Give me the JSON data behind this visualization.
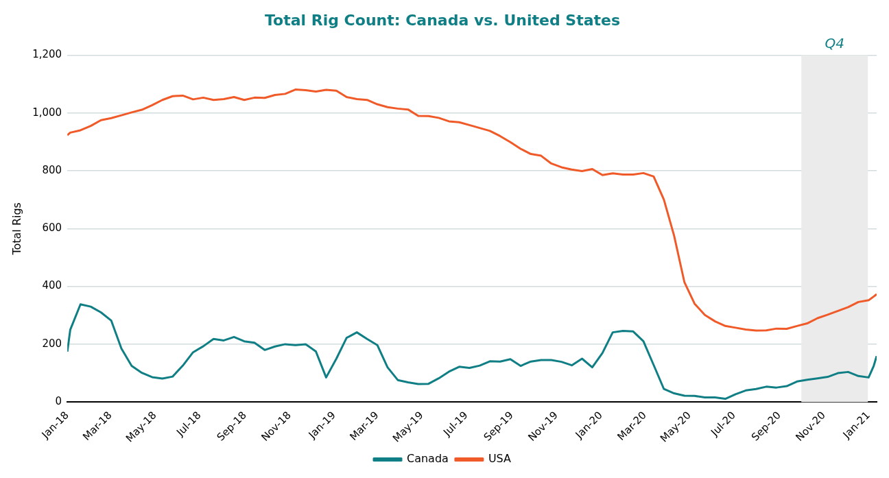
{
  "chart_data": {
    "type": "line",
    "title": "Total Rig Count: Canada vs. United States",
    "ylabel": "Total Rigs",
    "x": [
      "2018-01-01",
      "2018-01-05",
      "2018-01-19",
      "2018-02-02",
      "2018-02-16",
      "2018-03-02",
      "2018-03-16",
      "2018-03-30",
      "2018-04-13",
      "2018-04-27",
      "2018-05-11",
      "2018-05-25",
      "2018-06-08",
      "2018-06-22",
      "2018-07-06",
      "2018-07-20",
      "2018-08-03",
      "2018-08-17",
      "2018-08-31",
      "2018-09-14",
      "2018-09-28",
      "2018-10-12",
      "2018-10-26",
      "2018-11-09",
      "2018-11-23",
      "2018-12-07",
      "2018-12-21",
      "2019-01-04",
      "2019-01-18",
      "2019-02-01",
      "2019-02-15",
      "2019-03-01",
      "2019-03-15",
      "2019-03-29",
      "2019-04-12",
      "2019-04-26",
      "2019-05-10",
      "2019-05-24",
      "2019-06-07",
      "2019-06-21",
      "2019-07-05",
      "2019-07-19",
      "2019-08-02",
      "2019-08-16",
      "2019-08-30",
      "2019-09-13",
      "2019-09-27",
      "2019-10-11",
      "2019-10-25",
      "2019-11-08",
      "2019-11-22",
      "2019-12-06",
      "2019-12-20",
      "2020-01-03",
      "2020-01-17",
      "2020-01-31",
      "2020-02-14",
      "2020-02-28",
      "2020-03-13",
      "2020-03-27",
      "2020-04-10",
      "2020-04-24",
      "2020-05-08",
      "2020-05-22",
      "2020-06-05",
      "2020-06-19",
      "2020-07-03",
      "2020-07-17",
      "2020-07-31",
      "2020-08-14",
      "2020-08-28",
      "2020-09-11",
      "2020-09-25",
      "2020-10-09",
      "2020-10-23",
      "2020-11-06",
      "2020-11-20",
      "2020-12-04",
      "2020-12-18",
      "2021-01-01",
      "2021-01-08",
      "2021-01-12"
    ],
    "series": [
      {
        "name": "Canada",
        "color": "#107f85",
        "values": [
          174,
          250,
          338,
          330,
          310,
          282,
          185,
          125,
          101,
          86,
          81,
          88,
          126,
          172,
          193,
          218,
          213,
          225,
          210,
          205,
          180,
          192,
          200,
          197,
          200,
          175,
          85,
          150,
          222,
          241,
          218,
          197,
          120,
          76,
          68,
          62,
          63,
          82,
          105,
          122,
          118,
          126,
          141,
          140,
          148,
          125,
          140,
          145,
          145,
          139,
          127,
          150,
          120,
          170,
          241,
          246,
          244,
          210,
          128,
          45,
          30,
          22,
          21,
          16,
          16,
          11,
          27,
          40,
          45,
          53,
          50,
          55,
          71,
          77,
          82,
          87,
          100,
          104,
          90,
          85,
          125,
          159
        ]
      },
      {
        "name": "USA",
        "color": "#f05a28",
        "values": [
          923,
          932,
          940,
          955,
          975,
          982,
          992,
          1002,
          1011,
          1027,
          1045,
          1058,
          1060,
          1047,
          1053,
          1045,
          1048,
          1055,
          1045,
          1053,
          1052,
          1062,
          1066,
          1081,
          1079,
          1074,
          1080,
          1077,
          1055,
          1048,
          1045,
          1030,
          1020,
          1015,
          1012,
          990,
          989,
          983,
          971,
          968,
          958,
          948,
          938,
          920,
          899,
          876,
          858,
          852,
          825,
          812,
          804,
          799,
          806,
          785,
          791,
          787,
          787,
          792,
          780,
          700,
          575,
          415,
          340,
          301,
          279,
          263,
          257,
          251,
          247,
          248,
          254,
          253,
          263,
          272,
          290,
          302,
          315,
          328,
          346,
          352,
          365,
          373
        ]
      }
    ],
    "xlim": [
      "2018-01-01",
      "2021-01-12"
    ],
    "xticks": [
      {
        "value": "2018-01-01",
        "label": "Jan-18"
      },
      {
        "value": "2018-03-01",
        "label": "Mar-18"
      },
      {
        "value": "2018-05-01",
        "label": "May-18"
      },
      {
        "value": "2018-07-01",
        "label": "Jul-18"
      },
      {
        "value": "2018-09-01",
        "label": "Sep-18"
      },
      {
        "value": "2018-11-01",
        "label": "Nov-18"
      },
      {
        "value": "2019-01-01",
        "label": "Jan-19"
      },
      {
        "value": "2019-03-01",
        "label": "Mar-19"
      },
      {
        "value": "2019-05-01",
        "label": "May-19"
      },
      {
        "value": "2019-07-01",
        "label": "Jul-19"
      },
      {
        "value": "2019-09-01",
        "label": "Sep-19"
      },
      {
        "value": "2019-11-01",
        "label": "Nov-19"
      },
      {
        "value": "2020-01-01",
        "label": "Jan-20"
      },
      {
        "value": "2020-03-01",
        "label": "Mar-20"
      },
      {
        "value": "2020-05-01",
        "label": "May-20"
      },
      {
        "value": "2020-07-01",
        "label": "Jul-20"
      },
      {
        "value": "2020-09-01",
        "label": "Sep-20"
      },
      {
        "value": "2020-11-01",
        "label": "Nov-20"
      },
      {
        "value": "2021-01-01",
        "label": "Jan-21"
      }
    ],
    "ylim": [
      0,
      1200
    ],
    "yticks": [
      0,
      200,
      400,
      600,
      800,
      {
        "value": 1000,
        "label": "1,000"
      },
      {
        "value": 1200,
        "label": "1,200"
      }
    ],
    "bands": [
      {
        "axis": "x",
        "from": "2020-10-01",
        "to": "2020-12-31",
        "label": "Q4",
        "color": "#ebebeb"
      }
    ],
    "grid": "y",
    "legend": "bottom",
    "marker": "none",
    "line_style": "solid"
  }
}
